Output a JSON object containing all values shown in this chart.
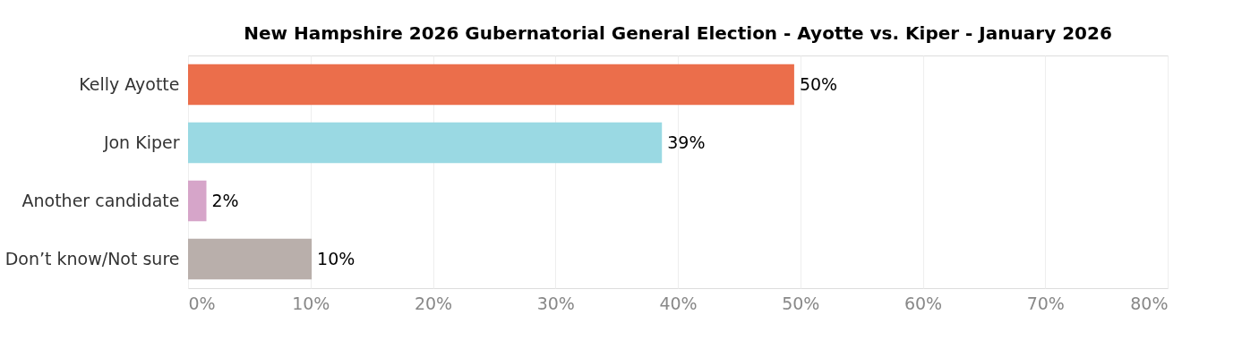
{
  "chart_data": {
    "type": "bar",
    "orientation": "horizontal",
    "title": "New Hampshire 2026 Gubernatorial General Election - Ayotte vs. Kiper - January 2026",
    "categories": [
      "Kelly Ayotte",
      "Jon Kiper",
      "Another candidate",
      "Don’t know/Not sure"
    ],
    "values": [
      49.5,
      38.7,
      1.5,
      10.1
    ],
    "colors": [
      "#eb6e4b",
      "#9ad9e3",
      "#d6a5c9",
      "#b9afab"
    ],
    "value_labels": [
      "50%",
      "39%",
      "2%",
      "10%"
    ],
    "xlim": [
      0,
      80
    ],
    "xticks": [
      {
        "value": 0,
        "label": "0%"
      },
      {
        "value": 10,
        "label": "10%"
      },
      {
        "value": 20,
        "label": "20%"
      },
      {
        "value": 30,
        "label": "30%"
      },
      {
        "value": 40,
        "label": "40%"
      },
      {
        "value": 50,
        "label": "50%"
      },
      {
        "value": 60,
        "label": "60%"
      },
      {
        "value": 70,
        "label": "70%"
      },
      {
        "value": 80,
        "label": "80%"
      }
    ],
    "grid": "x"
  }
}
